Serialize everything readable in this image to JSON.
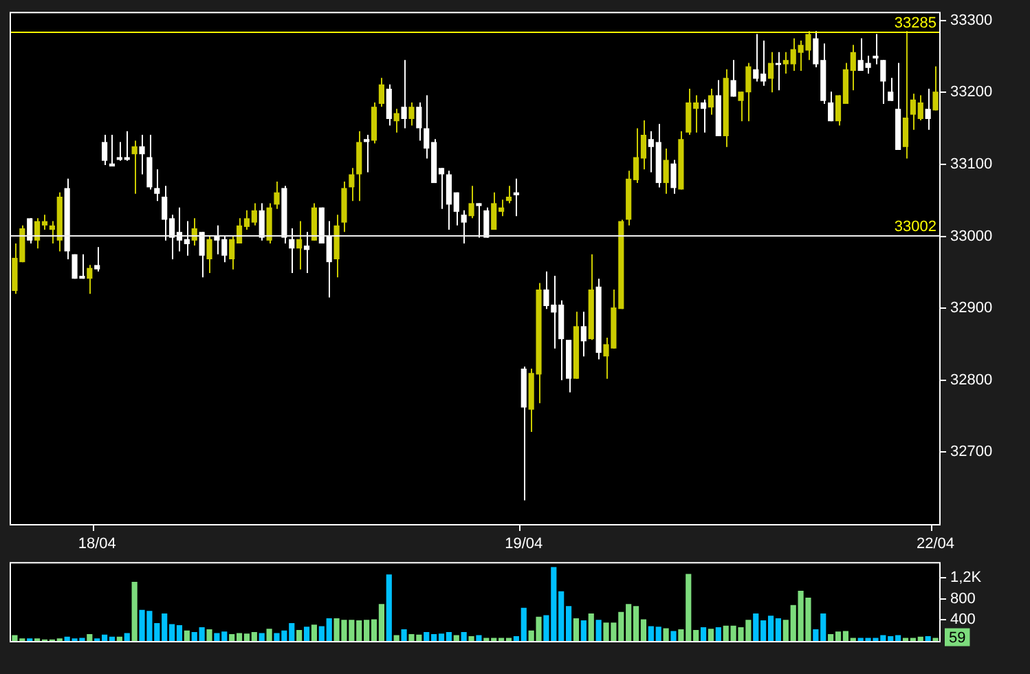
{
  "chart_data": [
    {
      "type": "candlestick",
      "categories": [
        null,
        null,
        null,
        null,
        null,
        null,
        null,
        null,
        null,
        null,
        null,
        "18/04",
        null,
        null,
        null,
        null,
        null,
        null,
        null,
        null,
        null,
        null,
        null,
        null,
        null,
        null,
        null,
        null,
        null,
        null,
        null,
        null,
        null,
        null,
        null,
        null,
        null,
        null,
        null,
        null,
        null,
        null,
        null,
        null,
        null,
        null,
        null,
        null,
        null,
        null,
        null,
        null,
        null,
        null,
        null,
        null,
        null,
        null,
        null,
        null,
        null,
        null,
        null,
        null,
        null,
        null,
        null,
        null,
        "19/04",
        null,
        null,
        null,
        null,
        null,
        null,
        null,
        null,
        null,
        null,
        null,
        null,
        null,
        null,
        null,
        null,
        null,
        null,
        null,
        null,
        null,
        null,
        null,
        null,
        null,
        null,
        null,
        null,
        null,
        null,
        null,
        null,
        null,
        null,
        null,
        null,
        null,
        null,
        null,
        null,
        null,
        null,
        null,
        null,
        null,
        null,
        null,
        null,
        null,
        null,
        null,
        null,
        null,
        null,
        "22/04"
      ],
      "ohlc": [
        [
          32924,
          32990,
          32920,
          32970
        ],
        [
          32964,
          33015,
          32964,
          33011
        ],
        [
          33025,
          33025,
          32990,
          32994
        ],
        [
          32994,
          33025,
          32983,
          33021
        ],
        [
          33015,
          33030,
          33009,
          33021
        ],
        [
          33009,
          33021,
          32990,
          33015
        ],
        [
          32994,
          33061,
          32979,
          33055
        ],
        [
          33067,
          33080,
          32968,
          32979
        ],
        [
          32975,
          32975,
          32941,
          32941
        ],
        [
          32945,
          32975,
          32941,
          32941
        ],
        [
          32941,
          32960,
          32920,
          32956
        ],
        [
          32960,
          32985,
          32951,
          32954
        ],
        [
          33131,
          33141,
          33099,
          33105
        ],
        [
          33101,
          33141,
          33097,
          33097
        ],
        [
          33110,
          33131,
          33105,
          33106
        ],
        [
          33110,
          33146,
          33105,
          33106
        ],
        [
          33114,
          33133,
          33059,
          33125
        ],
        [
          33125,
          33141,
          33086,
          33114
        ],
        [
          33110,
          33141,
          33065,
          33068
        ],
        [
          33067,
          33093,
          33049,
          33059
        ],
        [
          33055,
          33070,
          32994,
          33023
        ],
        [
          33025,
          33030,
          32968,
          32998
        ],
        [
          33006,
          33040,
          32979,
          32994
        ],
        [
          32996,
          33021,
          32973,
          32989
        ],
        [
          32994,
          33025,
          32987,
          33011
        ],
        [
          33006,
          33006,
          32943,
          32973
        ],
        [
          32968,
          33000,
          32949,
          32996
        ],
        [
          33000,
          33015,
          32975,
          32994
        ],
        [
          32996,
          33000,
          32964,
          32973
        ],
        [
          32968,
          33000,
          32954,
          32996
        ],
        [
          32990,
          33025,
          32990,
          33015
        ],
        [
          33013,
          33036,
          33009,
          33025
        ],
        [
          33019,
          33046,
          33015,
          33036
        ],
        [
          33036,
          33046,
          32994,
          32998
        ],
        [
          32994,
          33046,
          32990,
          33040
        ],
        [
          33044,
          33076,
          33038,
          33061
        ],
        [
          33067,
          33070,
          32990,
          32998
        ],
        [
          32996,
          33011,
          32949,
          32983
        ],
        [
          32983,
          33021,
          32954,
          32996
        ],
        [
          32987,
          33006,
          32949,
          32981
        ],
        [
          32994,
          33046,
          32994,
          33040
        ],
        [
          33040,
          33040,
          32990,
          32990
        ],
        [
          33000,
          33021,
          32915,
          32964
        ],
        [
          32968,
          33030,
          32943,
          33015
        ],
        [
          33019,
          33076,
          33006,
          33067
        ],
        [
          33068,
          33095,
          33049,
          33086
        ],
        [
          33086,
          33146,
          33049,
          33131
        ],
        [
          33135,
          33141,
          33089,
          33131
        ],
        [
          33133,
          33186,
          33129,
          33180
        ],
        [
          33184,
          33220,
          33180,
          33211
        ],
        [
          33205,
          33211,
          33154,
          33163
        ],
        [
          33160,
          33177,
          33144,
          33171
        ],
        [
          33180,
          33245,
          33150,
          33163
        ],
        [
          33163,
          33186,
          33154,
          33180
        ],
        [
          33180,
          33186,
          33133,
          33150
        ],
        [
          33150,
          33196,
          33108,
          33122
        ],
        [
          33131,
          33135,
          33074,
          33074
        ],
        [
          33095,
          33095,
          33038,
          33086
        ],
        [
          33086,
          33091,
          33009,
          33044
        ],
        [
          33061,
          33061,
          33015,
          33034
        ],
        [
          33030,
          33036,
          32990,
          33019
        ],
        [
          33028,
          33070,
          33025,
          33046
        ],
        [
          33046,
          33046,
          32998,
          33042
        ],
        [
          33036,
          33040,
          32998,
          32998
        ],
        [
          33009,
          33061,
          33009,
          33046
        ],
        [
          33034,
          33051,
          33028,
          33040
        ],
        [
          33049,
          33070,
          33046,
          33055
        ],
        [
          33061,
          33080,
          33028,
          33057
        ],
        [
          32816,
          32819,
          32633,
          32762
        ],
        [
          32759,
          32816,
          32728,
          32810
        ],
        [
          32808,
          32935,
          32768,
          32926
        ],
        [
          32926,
          32951,
          32899,
          32903
        ],
        [
          32905,
          32945,
          32844,
          32894
        ],
        [
          32905,
          32911,
          32800,
          32857
        ],
        [
          32856,
          32856,
          32783,
          32802
        ],
        [
          32802,
          32895,
          32802,
          32875
        ],
        [
          32875,
          32895,
          32833,
          32854
        ],
        [
          32857,
          32975,
          32856,
          32926
        ],
        [
          32930,
          32941,
          32829,
          32838
        ],
        [
          32833,
          32859,
          32802,
          32850
        ],
        [
          32844,
          32926,
          32844,
          32901
        ],
        [
          32899,
          33023,
          32899,
          33021
        ],
        [
          33023,
          33091,
          33015,
          33080
        ],
        [
          33078,
          33150,
          33074,
          33110
        ],
        [
          33108,
          33161,
          33093,
          33141
        ],
        [
          33135,
          33146,
          33089,
          33124
        ],
        [
          33131,
          33156,
          33068,
          33074
        ],
        [
          33074,
          33122,
          33059,
          33106
        ],
        [
          33101,
          33106,
          33059,
          33067
        ],
        [
          33065,
          33146,
          33065,
          33135
        ],
        [
          33144,
          33205,
          33141,
          33186
        ],
        [
          33177,
          33196,
          33144,
          33186
        ],
        [
          33186,
          33190,
          33144,
          33177
        ],
        [
          33179,
          33205,
          33169,
          33196
        ],
        [
          33196,
          33217,
          33139,
          33139
        ],
        [
          33139,
          33232,
          33124,
          33220
        ],
        [
          33217,
          33245,
          33194,
          33194
        ],
        [
          33188,
          33201,
          33160,
          33201
        ],
        [
          33200,
          33241,
          33160,
          33236
        ],
        [
          33232,
          33281,
          33215,
          33219
        ],
        [
          33226,
          33272,
          33209,
          33215
        ],
        [
          33219,
          33256,
          33200,
          33241
        ],
        [
          33241,
          33256,
          33203,
          33238
        ],
        [
          33239,
          33256,
          33226,
          33245
        ],
        [
          33239,
          33275,
          33230,
          33260
        ],
        [
          33255,
          33272,
          33230,
          33266
        ],
        [
          33258,
          33285,
          33245,
          33281
        ],
        [
          33275,
          33285,
          33235,
          33239
        ],
        [
          33245,
          33268,
          33184,
          33188
        ],
        [
          33186,
          33201,
          33160,
          33160
        ],
        [
          33160,
          33196,
          33154,
          33196
        ],
        [
          33184,
          33241,
          33184,
          33232
        ],
        [
          33230,
          33266,
          33203,
          33256
        ],
        [
          33245,
          33275,
          33230,
          33230
        ],
        [
          33241,
          33251,
          33226,
          33234
        ],
        [
          33251,
          33281,
          33239,
          33247
        ],
        [
          33245,
          33245,
          33184,
          33215
        ],
        [
          33201,
          33220,
          33188,
          33188
        ],
        [
          33177,
          33241,
          33120,
          33120
        ],
        [
          33124,
          33285,
          33108,
          33165
        ],
        [
          33169,
          33198,
          33148,
          33190
        ],
        [
          33163,
          33196,
          33161,
          33186
        ],
        [
          33177,
          33205,
          33148,
          33163
        ],
        [
          33175,
          33236,
          33175,
          33201
        ]
      ],
      "colors": [
        "#cccc00",
        "#cccc00",
        "#ffffff",
        "#cccc00",
        "#cccc00",
        "#cccc00",
        "#cccc00",
        "#ffffff",
        "#ffffff",
        "#ffffff",
        "#cccc00",
        "#ffffff",
        "#ffffff",
        "#ffffff",
        "#ffffff",
        "#ffffff",
        "#cccc00",
        "#ffffff",
        "#ffffff",
        "#ffffff",
        "#ffffff",
        "#ffffff",
        "#ffffff",
        "#ffffff",
        "#cccc00",
        "#ffffff",
        "#cccc00",
        "#ffffff",
        "#ffffff",
        "#cccc00",
        "#cccc00",
        "#cccc00",
        "#cccc00",
        "#ffffff",
        "#cccc00",
        "#cccc00",
        "#ffffff",
        "#ffffff",
        "#cccc00",
        "#ffffff",
        "#cccc00",
        "#ffffff",
        "#ffffff",
        "#cccc00",
        "#cccc00",
        "#cccc00",
        "#cccc00",
        "#ffffff",
        "#cccc00",
        "#cccc00",
        "#ffffff",
        "#cccc00",
        "#ffffff",
        "#cccc00",
        "#ffffff",
        "#ffffff",
        "#ffffff",
        "#ffffff",
        "#ffffff",
        "#ffffff",
        "#ffffff",
        "#cccc00",
        "#ffffff",
        "#ffffff",
        "#cccc00",
        "#cccc00",
        "#cccc00",
        "#ffffff",
        "#ffffff",
        "#cccc00",
        "#cccc00",
        "#ffffff",
        "#ffffff",
        "#ffffff",
        "#ffffff",
        "#cccc00",
        "#ffffff",
        "#cccc00",
        "#ffffff",
        "#cccc00",
        "#cccc00",
        "#cccc00",
        "#cccc00",
        "#cccc00",
        "#cccc00",
        "#ffffff",
        "#ffffff",
        "#cccc00",
        "#ffffff",
        "#cccc00",
        "#cccc00",
        "#cccc00",
        "#ffffff",
        "#cccc00",
        "#ffffff",
        "#cccc00",
        "#ffffff",
        "#cccc00",
        "#cccc00",
        "#ffffff",
        "#ffffff",
        "#cccc00",
        "#ffffff",
        "#cccc00",
        "#cccc00",
        "#cccc00",
        "#cccc00",
        "#ffffff",
        "#ffffff",
        "#ffffff",
        "#cccc00",
        "#cccc00",
        "#cccc00",
        "#ffffff",
        "#ffffff",
        "#ffffff",
        "#ffffff",
        "#ffffff",
        "#ffffff",
        "#cccc00",
        "#cccc00",
        "#cccc00",
        "#ffffff",
        "#cccc00"
      ],
      "ylim": [
        32600,
        33310
      ],
      "yticks": [
        32700,
        32800,
        32900,
        33000,
        33100,
        33200,
        33300
      ],
      "ref_lines": [
        {
          "axis": "y",
          "value": 33285,
          "label": "33285",
          "color": "#ffff00"
        },
        {
          "axis": "y",
          "value": 33002,
          "label": "33002",
          "color": "#f0f0f0"
        }
      ]
    },
    {
      "type": "bar",
      "categories": [
        null,
        null,
        null,
        null,
        null,
        null,
        null,
        null,
        null,
        null,
        null,
        null,
        null,
        null,
        null,
        null,
        null,
        null,
        null,
        null,
        null,
        null,
        null,
        null,
        null,
        null,
        null,
        null,
        null,
        null,
        null,
        null,
        null,
        null,
        null,
        null,
        null,
        null,
        null,
        null,
        null,
        null,
        null,
        null,
        null,
        null,
        null,
        null,
        null,
        null,
        null,
        null,
        null,
        null,
        null,
        null,
        null,
        null,
        null,
        null,
        null,
        null,
        null,
        null,
        null,
        null,
        null,
        null,
        null,
        null,
        null,
        null,
        null,
        null,
        null,
        null,
        null,
        null,
        null,
        null,
        null,
        null,
        null,
        null,
        null,
        null,
        null,
        null,
        null,
        null,
        null,
        null,
        null,
        null,
        null,
        null,
        null,
        null,
        null,
        null,
        null,
        null,
        null,
        null,
        null,
        null,
        null,
        null,
        null,
        null,
        null,
        null,
        null,
        null,
        null,
        null,
        null,
        null,
        null,
        null,
        null,
        null,
        null,
        null
      ],
      "values": [
        110,
        50,
        50,
        50,
        30,
        30,
        50,
        80,
        50,
        60,
        130,
        50,
        120,
        80,
        80,
        150,
        1120,
        590,
        570,
        340,
        520,
        320,
        300,
        200,
        170,
        260,
        220,
        150,
        180,
        130,
        150,
        140,
        170,
        150,
        230,
        150,
        200,
        340,
        210,
        270,
        310,
        280,
        430,
        430,
        400,
        400,
        390,
        400,
        410,
        700,
        1260,
        110,
        220,
        130,
        120,
        170,
        130,
        140,
        170,
        110,
        170,
        90,
        110,
        60,
        60,
        60,
        60,
        90,
        630,
        200,
        460,
        490,
        1400,
        940,
        660,
        430,
        390,
        520,
        400,
        350,
        350,
        550,
        700,
        660,
        410,
        280,
        270,
        240,
        190,
        220,
        1270,
        210,
        260,
        230,
        260,
        290,
        290,
        260,
        400,
        520,
        390,
        480,
        430,
        400,
        680,
        950,
        820,
        220,
        520,
        130,
        180,
        190,
        60,
        60,
        60,
        60,
        110,
        90,
        110,
        60,
        60,
        80,
        90,
        59
      ],
      "colors": [
        "#7ddc7d",
        "#7ddc7d",
        "#00c0ff",
        "#7ddc7d",
        "#7ddc7d",
        "#7ddc7d",
        "#7ddc7d",
        "#00c0ff",
        "#00c0ff",
        "#00c0ff",
        "#7ddc7d",
        "#00c0ff",
        "#00c0ff",
        "#00c0ff",
        "#7ddc7d",
        "#00c0ff",
        "#7ddc7d",
        "#00c0ff",
        "#00c0ff",
        "#00c0ff",
        "#00c0ff",
        "#00c0ff",
        "#00c0ff",
        "#7ddc7d",
        "#00c0ff",
        "#00c0ff",
        "#7ddc7d",
        "#00c0ff",
        "#00c0ff",
        "#7ddc7d",
        "#7ddc7d",
        "#7ddc7d",
        "#7ddc7d",
        "#00c0ff",
        "#7ddc7d",
        "#00c0ff",
        "#00c0ff",
        "#00c0ff",
        "#7ddc7d",
        "#00c0ff",
        "#7ddc7d",
        "#00c0ff",
        "#00c0ff",
        "#7ddc7d",
        "#7ddc7d",
        "#7ddc7d",
        "#7ddc7d",
        "#7ddc7d",
        "#7ddc7d",
        "#7ddc7d",
        "#00c0ff",
        "#7ddc7d",
        "#00c0ff",
        "#7ddc7d",
        "#7ddc7d",
        "#00c0ff",
        "#00c0ff",
        "#00c0ff",
        "#00c0ff",
        "#7ddc7d",
        "#00c0ff",
        "#7ddc7d",
        "#00c0ff",
        "#7ddc7d",
        "#7ddc7d",
        "#7ddc7d",
        "#7ddc7d",
        "#00c0ff",
        "#00c0ff",
        "#7ddc7d",
        "#7ddc7d",
        "#00c0ff",
        "#00c0ff",
        "#00c0ff",
        "#00c0ff",
        "#7ddc7d",
        "#00c0ff",
        "#7ddc7d",
        "#00c0ff",
        "#7ddc7d",
        "#7ddc7d",
        "#7ddc7d",
        "#7ddc7d",
        "#7ddc7d",
        "#7ddc7d",
        "#00c0ff",
        "#00c0ff",
        "#7ddc7d",
        "#00c0ff",
        "#7ddc7d",
        "#7ddc7d",
        "#7ddc7d",
        "#00c0ff",
        "#7ddc7d",
        "#00c0ff",
        "#7ddc7d",
        "#7ddc7d",
        "#7ddc7d",
        "#7ddc7d",
        "#00c0ff",
        "#00c0ff",
        "#00c0ff",
        "#00c0ff",
        "#7ddc7d",
        "#7ddc7d",
        "#7ddc7d",
        "#7ddc7d",
        "#00c0ff",
        "#00c0ff",
        "#7ddc7d",
        "#7ddc7d",
        "#7ddc7d",
        "#7ddc7d",
        "#00c0ff",
        "#00c0ff",
        "#00c0ff",
        "#00c0ff",
        "#00c0ff",
        "#00c0ff",
        "#7ddc7d",
        "#7ddc7d",
        "#7ddc7d",
        "#00c0ff",
        "#7ddc7d"
      ],
      "ylim": [
        0,
        1470
      ],
      "yticks": [
        400,
        800,
        {
          "value": 1200,
          "label": "1,2K"
        }
      ],
      "tick_labels": "y",
      "annotations": [
        "59"
      ]
    }
  ]
}
